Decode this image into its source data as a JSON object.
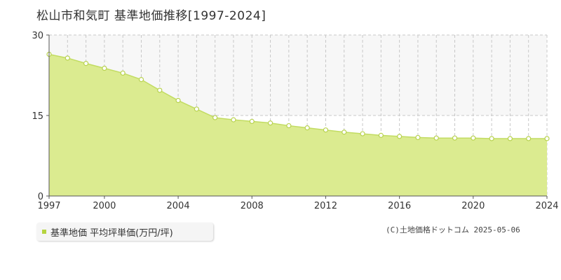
{
  "chart_data": {
    "type": "area",
    "title": "松山市和気町 基準地価推移[1997-2024]",
    "x": [
      1997,
      1998,
      1999,
      2000,
      2001,
      2002,
      2003,
      2004,
      2005,
      2006,
      2007,
      2008,
      2009,
      2010,
      2011,
      2012,
      2013,
      2014,
      2015,
      2016,
      2017,
      2018,
      2019,
      2020,
      2021,
      2022,
      2023,
      2024
    ],
    "series": [
      {
        "name": "基準地価 平均坪単価(万円/坪)",
        "values": [
          26.4,
          25.7,
          24.7,
          23.8,
          22.9,
          21.7,
          19.7,
          17.8,
          16.2,
          14.6,
          14.2,
          13.9,
          13.6,
          13.1,
          12.7,
          12.3,
          11.9,
          11.6,
          11.3,
          11.1,
          10.9,
          10.8,
          10.8,
          10.8,
          10.7,
          10.7,
          10.7,
          10.7
        ]
      }
    ],
    "xlim": [
      1997,
      2024
    ],
    "ylim": [
      0,
      30
    ],
    "yticks": [
      0,
      15,
      30
    ],
    "xtick_labels": [
      "1997",
      "2000",
      "2004",
      "2008",
      "2012",
      "2016",
      "2020",
      "2024"
    ],
    "grid": true,
    "colors": {
      "fill": "#dbeb90",
      "line": "#c2dc62",
      "marker_stroke": "#b8d24f",
      "band": "#f7f7f7"
    }
  },
  "legend_label": "基準地価 平均坪単価(万円/坪)",
  "credit": "(C)土地価格ドットコム 2025-05-06"
}
